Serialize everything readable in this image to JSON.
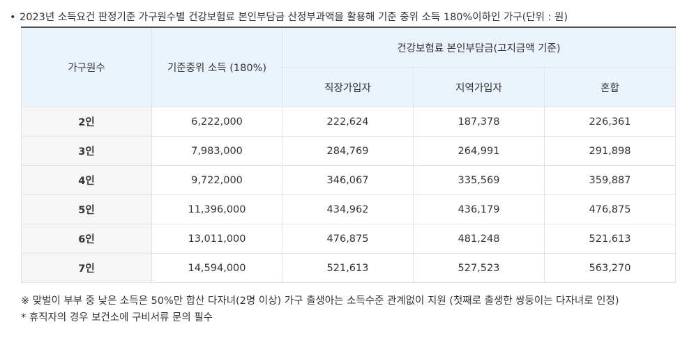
{
  "caption": {
    "bullet": "•",
    "text": "2023년 소득요건 판정기준 가구원수별 건강보험료 본인부담금 산정부과액을 활용해 기준 중위 소득 180%이하인 가구(단위 : 원)"
  },
  "table": {
    "headers": {
      "household": "가구원수",
      "median_income": "기준중위 소득 (180%)",
      "premium_group": "건강보험료 본인부담금(고지금액 기준)",
      "employee": "직장가입자",
      "regional": "지역가입자",
      "mixed": "혼합"
    },
    "rows": [
      {
        "household": "2인",
        "income": "6,222,000",
        "employee": "222,624",
        "regional": "187,378",
        "mixed": "226,361"
      },
      {
        "household": "3인",
        "income": "7,983,000",
        "employee": "284,769",
        "regional": "264,991",
        "mixed": "291,898"
      },
      {
        "household": "4인",
        "income": "9,722,000",
        "employee": "346,067",
        "regional": "335,569",
        "mixed": "359,887"
      },
      {
        "household": "5인",
        "income": "11,396,000",
        "employee": "434,962",
        "regional": "436,179",
        "mixed": "476,875"
      },
      {
        "household": "6인",
        "income": "13,011,000",
        "employee": "476,875",
        "regional": "481,248",
        "mixed": "521,613"
      },
      {
        "household": "7인",
        "income": "14,594,000",
        "employee": "521,613",
        "regional": "527,523",
        "mixed": "563,270"
      }
    ]
  },
  "notes": [
    "※ 맞벌이 부부 중 낮은 소득은 50%만 합산 다자녀(2명 이상) 가구 출생아는 소득수준 관계없이 지원 (첫째로 출생한 쌍둥이는 다자녀로 인정)",
    "* 휴직자의 경우 보건소에 구비서류 문의 필수"
  ]
}
